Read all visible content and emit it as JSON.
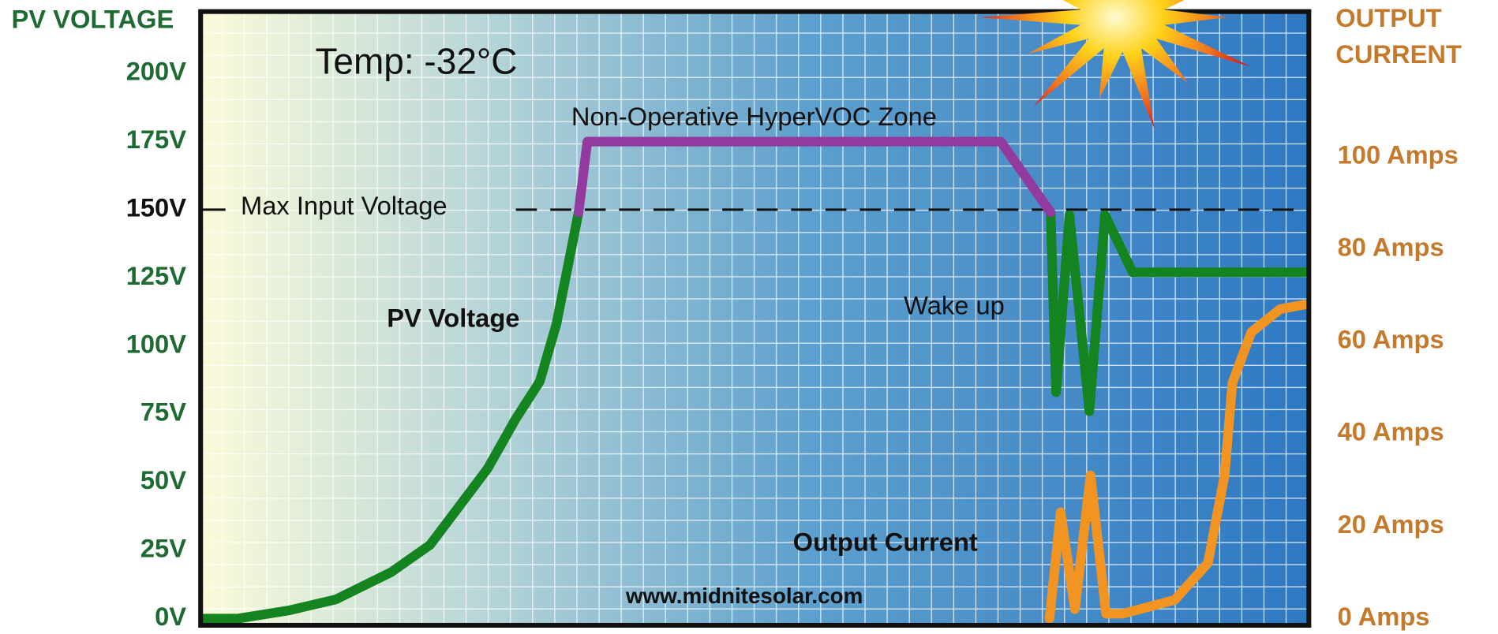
{
  "chart_data": {
    "type": "line",
    "ylabel": "PV VOLTAGE",
    "y2label": "OUTPUT CURRENT",
    "xlim": [
      0,
      100
    ],
    "ylim": [
      -2.5,
      222.7
    ],
    "yticks": [
      {
        "value": 0,
        "label": "0V"
      },
      {
        "value": 25,
        "label": "25V"
      },
      {
        "value": 50,
        "label": "50V"
      },
      {
        "value": 75,
        "label": "75V"
      },
      {
        "value": 100,
        "label": "100V"
      },
      {
        "value": 125,
        "label": "125V"
      },
      {
        "value": 150,
        "label": "150V"
      },
      {
        "value": 175,
        "label": "175V"
      },
      {
        "value": 200,
        "label": "200V"
      }
    ],
    "y2lim": [
      -1.5,
      131.5
    ],
    "y2ticks": [
      {
        "value": 0,
        "label": "0 Amps"
      },
      {
        "value": 20,
        "label": "20 Amps"
      },
      {
        "value": 40,
        "label": "40 Amps"
      },
      {
        "value": 60,
        "label": "60 Amps"
      },
      {
        "value": 80,
        "label": "80 Amps"
      },
      {
        "value": 100,
        "label": "100 Amps"
      }
    ],
    "hline": {
      "value": 150,
      "label": "Max Input Voltage"
    },
    "series": [
      {
        "name": "PV Voltage",
        "color": "#13841f",
        "x": [
          0.3,
          3.4,
          8,
          12.2,
          17.2,
          20.7,
          23.3,
          25.9,
          28.4,
          30.6,
          32.1,
          34.1,
          55,
          76.7,
          77.2,
          78.4,
          80.2,
          81.6,
          84.1,
          99.6
        ],
        "values": [
          0,
          0,
          3,
          7,
          17,
          27,
          41,
          55,
          73,
          87,
          108,
          149,
          null,
          149,
          83,
          148,
          76,
          148,
          127,
          127
        ]
      },
      {
        "name": "Non-Operative HyperVOC Zone",
        "color": "#933a9e",
        "x": [
          34.1,
          34.9,
          72.2,
          76.7
        ],
        "values": [
          149,
          175,
          175,
          149
        ]
      },
      {
        "name": "Output Current",
        "color": "#f29422",
        "axis": "y2",
        "x": [
          76.6,
          77.6,
          78.9,
          80.3,
          81.7,
          83.2,
          87.9,
          90.9,
          92.4,
          93.1,
          94.8,
          97.4,
          99.6
        ],
        "values": [
          0,
          23,
          2,
          31,
          1,
          1,
          4,
          12,
          31,
          51,
          62,
          67,
          68
        ]
      }
    ],
    "annotations": [
      "Temp: -32°C",
      "Wake up",
      "www.midnitesolar.com"
    ]
  }
}
